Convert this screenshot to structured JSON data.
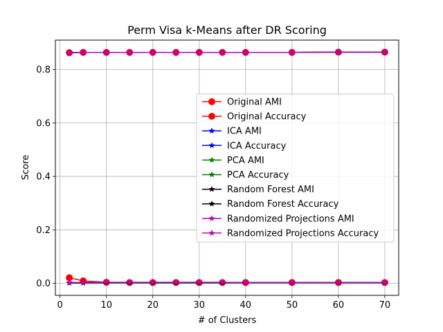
{
  "chart_data": {
    "type": "line",
    "title": "Perm Visa k-Means after DR Scoring",
    "xlabel": "# of Clusters",
    "ylabel": "Score",
    "xlim": [
      -1,
      73
    ],
    "ylim": [
      -0.045,
      0.91
    ],
    "xticks": [
      0,
      10,
      20,
      30,
      40,
      50,
      60,
      70
    ],
    "yticks": [
      0.0,
      0.2,
      0.4,
      0.6,
      0.8
    ],
    "ytick_labels": [
      "0.0",
      "0.2",
      "0.4",
      "0.6",
      "0.8"
    ],
    "grid": true,
    "legend_position": "center-right",
    "x": [
      2,
      5,
      10,
      15,
      20,
      25,
      30,
      35,
      40,
      50,
      60,
      70
    ],
    "series": [
      {
        "name": "Original AMI",
        "color": "#ff0000",
        "marker": "circle",
        "values": [
          0.021,
          0.009,
          0.004,
          0.003,
          0.003,
          0.003,
          0.003,
          0.003,
          0.003,
          0.003,
          0.003,
          0.003
        ]
      },
      {
        "name": "Original Accuracy",
        "color": "#ff0000",
        "marker": "circle",
        "values": [
          0.863,
          0.864,
          0.864,
          0.864,
          0.864,
          0.864,
          0.864,
          0.864,
          0.864,
          0.864,
          0.865,
          0.865
        ]
      },
      {
        "name": "ICA AMI",
        "color": "#0000ff",
        "marker": "star",
        "values": [
          0.003,
          0.003,
          0.003,
          0.003,
          0.003,
          0.003,
          0.003,
          0.003,
          0.003,
          0.003,
          0.003,
          0.003
        ]
      },
      {
        "name": "ICA Accuracy",
        "color": "#0000ff",
        "marker": "star",
        "values": [
          0.863,
          0.864,
          0.864,
          0.864,
          0.864,
          0.864,
          0.864,
          0.864,
          0.864,
          0.864,
          0.865,
          0.865
        ]
      },
      {
        "name": "PCA AMI",
        "color": "#008000",
        "marker": "star",
        "values": [
          0.002,
          0.002,
          0.002,
          0.002,
          0.002,
          0.002,
          0.002,
          0.002,
          0.002,
          0.002,
          0.002,
          0.002
        ]
      },
      {
        "name": "PCA Accuracy",
        "color": "#008000",
        "marker": "star",
        "values": [
          0.863,
          0.864,
          0.864,
          0.864,
          0.864,
          0.864,
          0.864,
          0.864,
          0.864,
          0.864,
          0.865,
          0.865
        ]
      },
      {
        "name": "Random Forest AMI",
        "color": "#000000",
        "marker": "star",
        "values": [
          0.001,
          0.001,
          0.002,
          0.002,
          0.002,
          0.002,
          0.002,
          0.002,
          0.002,
          0.002,
          0.002,
          0.002
        ]
      },
      {
        "name": "Random Forest Accuracy",
        "color": "#000000",
        "marker": "star",
        "values": [
          0.863,
          0.864,
          0.864,
          0.864,
          0.864,
          0.864,
          0.864,
          0.864,
          0.864,
          0.864,
          0.865,
          0.865
        ]
      },
      {
        "name": "Randomized Projections AMI",
        "color": "#bf00bf",
        "marker": "star",
        "values": [
          0.003,
          0.003,
          0.004,
          0.004,
          0.004,
          0.004,
          0.004,
          0.004,
          0.003,
          0.003,
          0.003,
          0.003
        ]
      },
      {
        "name": "Randomized Projections Accuracy",
        "color": "#bf00bf",
        "marker": "star",
        "values": [
          0.863,
          0.864,
          0.864,
          0.864,
          0.864,
          0.864,
          0.864,
          0.864,
          0.864,
          0.864,
          0.865,
          0.865
        ]
      }
    ]
  }
}
